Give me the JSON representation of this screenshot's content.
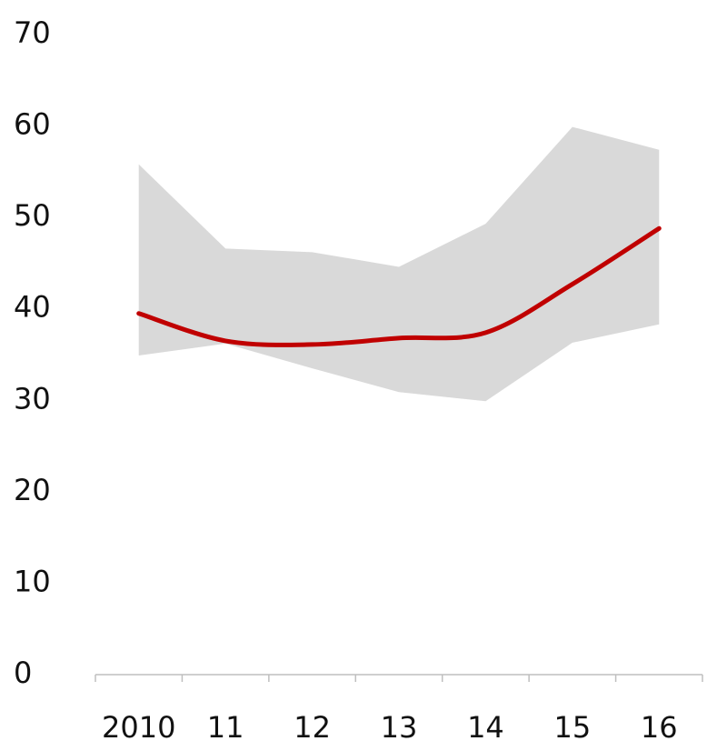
{
  "chart_data": {
    "type": "line",
    "categories": [
      "2010",
      "11",
      "12",
      "13",
      "14",
      "15",
      "16"
    ],
    "values": [
      39.5,
      36.5,
      36.1,
      36.8,
      37.4,
      42.7,
      48.8
    ],
    "color": "#c00000",
    "band": {
      "upper": [
        55.8,
        46.6,
        46.2,
        44.6,
        49.3,
        59.9,
        57.4
      ],
      "lower": [
        34.9,
        36.2,
        33.5,
        30.9,
        29.9,
        36.3,
        38.3
      ],
      "color": "#d9d9d9"
    },
    "ylim": [
      0,
      70
    ],
    "yticks": [
      0,
      10,
      20,
      30,
      40,
      50,
      60,
      70
    ],
    "grid": false
  }
}
